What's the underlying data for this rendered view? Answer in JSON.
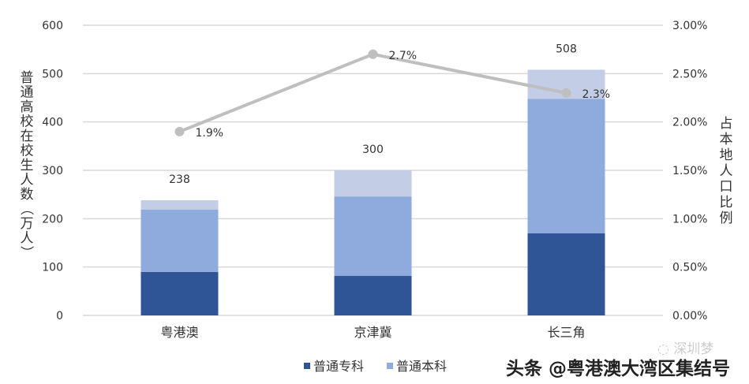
{
  "chart_data": {
    "type": "bar+line",
    "categories": [
      "粤港澳",
      "京津冀",
      "长三角"
    ],
    "series": [
      {
        "name": "普通专科",
        "type": "bar",
        "axis": "left",
        "color": "#2F5597",
        "values": [
          90,
          82,
          170
        ]
      },
      {
        "name": "普通本科",
        "type": "bar",
        "axis": "left",
        "color": "#8FAADC",
        "values": [
          129,
          164,
          278
        ]
      },
      {
        "type": "bar",
        "axis": "left",
        "color": "#C3CDE6",
        "values": [
          19,
          54,
          60
        ]
      },
      {
        "type": "line",
        "axis": "right",
        "color": "#BFBFBF",
        "values": [
          1.9,
          2.7,
          2.3
        ],
        "labels": [
          "1.9%",
          "2.7%",
          "2.3%"
        ]
      }
    ],
    "totals": [
      "238",
      "300",
      "508"
    ],
    "ylabel": "普通高校在校生人数（万人）",
    "y2label": "占本地人口比例",
    "ylim": [
      0,
      600
    ],
    "y2lim": [
      0,
      3
    ],
    "yticks": [
      "0",
      "100",
      "200",
      "300",
      "400",
      "500",
      "600"
    ],
    "y2ticks": [
      "0.00%",
      "0.50%",
      "1.00%",
      "1.50%",
      "2.00%",
      "2.50%",
      "3.00%"
    ],
    "grid": true,
    "legend_position": "bottom",
    "legend": [
      "普通专科",
      "普通本科"
    ]
  },
  "watermark": {
    "logo_text": "深圳梦",
    "caption": "头条 @粤港澳大湾区集结号"
  }
}
